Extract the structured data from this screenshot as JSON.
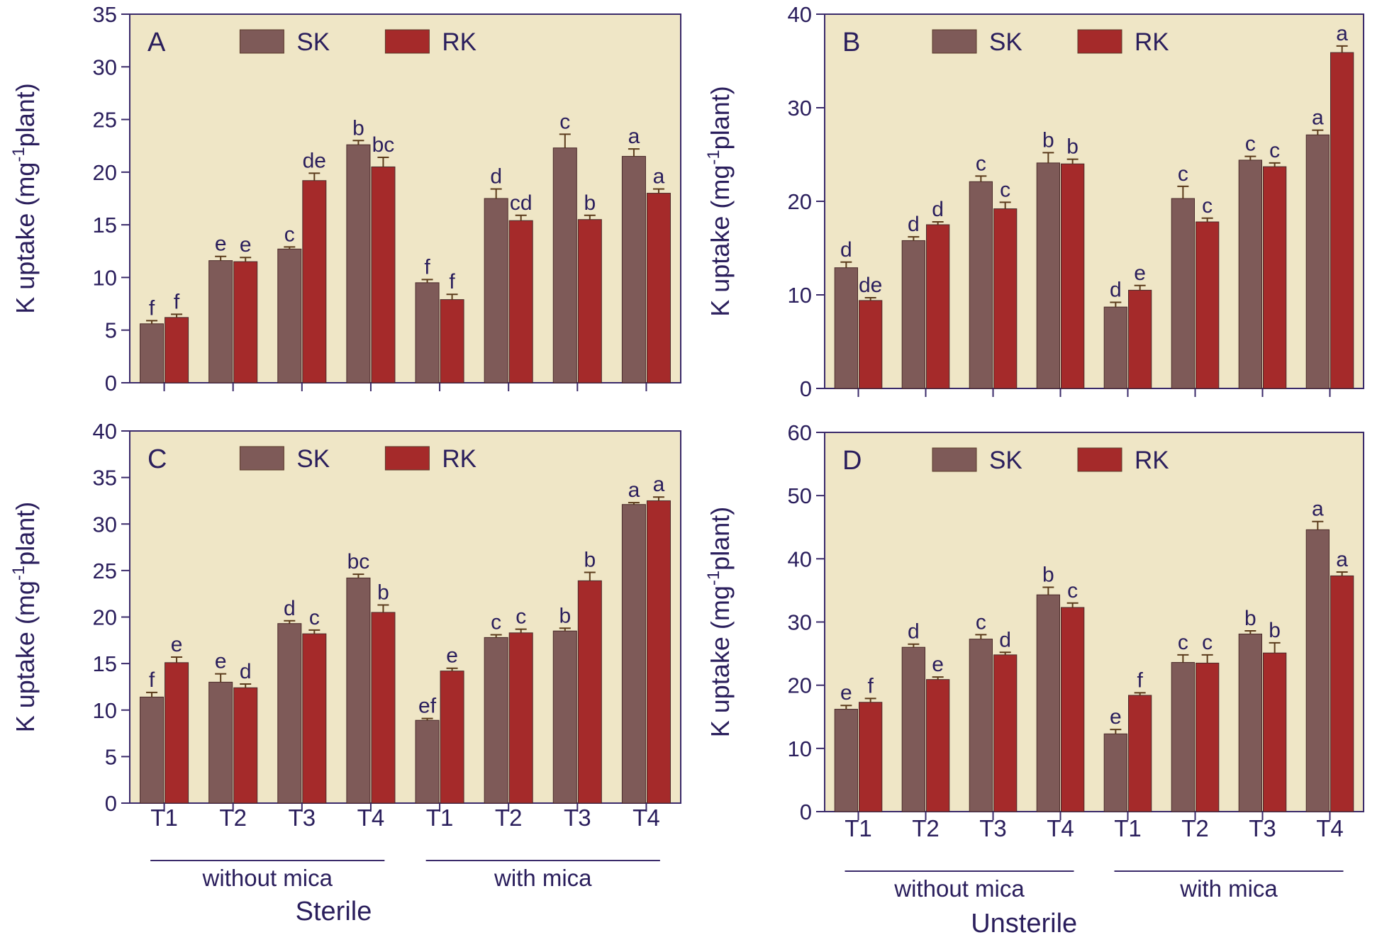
{
  "figure": {
    "panels": [
      {
        "id": "A",
        "letter": "A",
        "ylabel": "K uptake (mg",
        "ylabel_sup": "-1",
        "ylabel_tail": "plant)",
        "ymax": 35,
        "ystep": 5,
        "legend": [
          "SK",
          "RK"
        ],
        "show_x": false,
        "condition": ""
      },
      {
        "id": "B",
        "letter": "B",
        "ylabel": "K uptake (mg",
        "ylabel_sup": "-1",
        "ylabel_tail": "plant)",
        "ymax": 40,
        "ystep": 10,
        "legend": [
          "SK",
          "RK"
        ],
        "show_x": false,
        "condition": ""
      },
      {
        "id": "C",
        "letter": "C",
        "ylabel": "K uptake (mg",
        "ylabel_sup": "-1",
        "ylabel_tail": "plant)",
        "ymax": 40,
        "ystep": 5,
        "legend": [
          "SK",
          "RK"
        ],
        "show_x": true,
        "condition": "Sterile"
      },
      {
        "id": "D",
        "letter": "D",
        "ylabel": "K uptake (mg",
        "ylabel_sup": "-1",
        "ylabel_tail": "plant)",
        "ymax": 60,
        "ystep": 10,
        "legend": [
          "SK",
          "RK"
        ],
        "show_x": true,
        "condition": "Unsterile"
      }
    ],
    "groups": [
      "without mica",
      "with mica"
    ]
  },
  "colors": {
    "sk": "#7e5a58",
    "rk": "#a52a2a",
    "background": "#efe6c6",
    "axis": "#3a2a6a",
    "text": "#2a1e5c"
  },
  "chart_data": [
    {
      "type": "bar",
      "panel": "A",
      "ylabel": "K uptake (mg-1plant)",
      "ylim": [
        0,
        35
      ],
      "categories": [
        "T1",
        "T2",
        "T3",
        "T4",
        "T1",
        "T2",
        "T3",
        "T4"
      ],
      "category_groups": [
        "without mica",
        "without mica",
        "without mica",
        "without mica",
        "with mica",
        "with mica",
        "with mica",
        "with mica"
      ],
      "series": [
        {
          "name": "SK",
          "values": [
            5.6,
            11.6,
            12.7,
            22.6,
            9.5,
            17.5,
            22.3,
            21.5
          ],
          "errors": [
            0.3,
            0.4,
            0.2,
            0.4,
            0.3,
            0.9,
            1.3,
            0.7
          ],
          "labels": [
            "f",
            "e",
            "c",
            "b",
            "f",
            "d",
            "c",
            "a"
          ]
        },
        {
          "name": "RK",
          "values": [
            6.2,
            11.5,
            19.2,
            20.5,
            7.9,
            15.4,
            15.5,
            18.0
          ],
          "errors": [
            0.3,
            0.4,
            0.7,
            0.9,
            0.5,
            0.5,
            0.4,
            0.4
          ],
          "labels": [
            "f",
            "e",
            "de",
            "bc",
            "f",
            "cd",
            "b",
            "a"
          ]
        }
      ]
    },
    {
      "type": "bar",
      "panel": "B",
      "ylabel": "K uptake (mg-1plant)",
      "ylim": [
        0,
        40
      ],
      "categories": [
        "T1",
        "T2",
        "T3",
        "T4",
        "T1",
        "T2",
        "T3",
        "T4"
      ],
      "category_groups": [
        "without mica",
        "without mica",
        "without mica",
        "without mica",
        "with mica",
        "with mica",
        "with mica",
        "with mica"
      ],
      "series": [
        {
          "name": "SK",
          "values": [
            12.9,
            15.8,
            22.1,
            24.1,
            8.7,
            20.3,
            24.4,
            27.1
          ],
          "errors": [
            0.6,
            0.4,
            0.6,
            1.1,
            0.5,
            1.3,
            0.4,
            0.5
          ],
          "labels": [
            "d",
            "d",
            "c",
            "b",
            "d",
            "c",
            "c",
            "a"
          ]
        },
        {
          "name": "RK",
          "values": [
            9.4,
            17.5,
            19.2,
            24.0,
            10.5,
            17.8,
            23.7,
            35.9
          ],
          "errors": [
            0.3,
            0.3,
            0.7,
            0.5,
            0.5,
            0.4,
            0.4,
            0.7
          ],
          "labels": [
            "de",
            "d",
            "c",
            "b",
            "e",
            "c",
            "c",
            "a"
          ]
        }
      ]
    },
    {
      "type": "bar",
      "panel": "C",
      "ylabel": "K uptake (mg-1plant)",
      "ylim": [
        0,
        40
      ],
      "categories": [
        "T1",
        "T2",
        "T3",
        "T4",
        "T1",
        "T2",
        "T3",
        "T4"
      ],
      "category_groups": [
        "without mica",
        "without mica",
        "without mica",
        "without mica",
        "with mica",
        "with mica",
        "with mica",
        "with mica"
      ],
      "xlabel": "Sterile",
      "series": [
        {
          "name": "SK",
          "values": [
            11.4,
            13.0,
            19.3,
            24.2,
            8.9,
            17.8,
            18.5,
            32.1
          ],
          "errors": [
            0.5,
            0.9,
            0.3,
            0.4,
            0.2,
            0.3,
            0.3,
            0.2
          ],
          "labels": [
            "f",
            "e",
            "d",
            "bc",
            "ef",
            "c",
            "b",
            "a"
          ]
        },
        {
          "name": "RK",
          "values": [
            15.1,
            12.4,
            18.2,
            20.5,
            14.2,
            18.3,
            23.9,
            32.5
          ],
          "errors": [
            0.6,
            0.4,
            0.4,
            0.8,
            0.3,
            0.4,
            0.9,
            0.4
          ],
          "labels": [
            "e",
            "d",
            "c",
            "b",
            "e",
            "c",
            "b",
            "a"
          ]
        }
      ]
    },
    {
      "type": "bar",
      "panel": "D",
      "ylabel": "K uptake (mg-1plant)",
      "ylim": [
        0,
        60
      ],
      "categories": [
        "T1",
        "T2",
        "T3",
        "T4",
        "T1",
        "T2",
        "T3",
        "T4"
      ],
      "category_groups": [
        "without mica",
        "without mica",
        "without mica",
        "without mica",
        "with mica",
        "with mica",
        "with mica",
        "with mica"
      ],
      "xlabel": "Unsterile",
      "series": [
        {
          "name": "SK",
          "values": [
            16.2,
            26.0,
            27.3,
            34.3,
            12.3,
            23.6,
            28.1,
            44.6
          ],
          "errors": [
            0.6,
            0.5,
            0.7,
            1.2,
            0.7,
            1.2,
            0.5,
            1.3
          ],
          "labels": [
            "e",
            "d",
            "c",
            "b",
            "e",
            "c",
            "b",
            "a"
          ]
        },
        {
          "name": "RK",
          "values": [
            17.3,
            20.9,
            24.8,
            32.3,
            18.4,
            23.5,
            25.1,
            37.3
          ],
          "errors": [
            0.6,
            0.4,
            0.4,
            0.7,
            0.4,
            1.3,
            1.6,
            0.6
          ],
          "labels": [
            "f",
            "e",
            "d",
            "c",
            "f",
            "c",
            "b",
            "a"
          ]
        }
      ]
    }
  ]
}
